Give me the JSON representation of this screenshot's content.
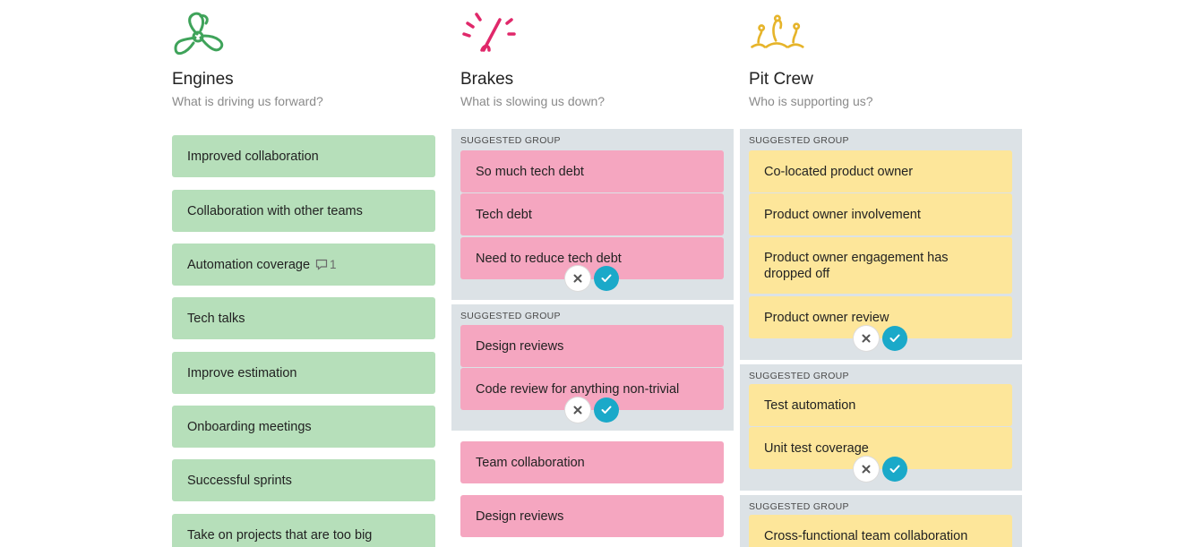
{
  "columns": {
    "engines": {
      "title": "Engines",
      "subtitle": "What is driving us forward?",
      "icon": "propeller-icon",
      "color": "#3fa35a",
      "cards": [
        {
          "text": "Improved collaboration"
        },
        {
          "text": "Collaboration with other teams"
        },
        {
          "text": "Automation coverage",
          "comments": "1"
        },
        {
          "text": "Tech talks"
        },
        {
          "text": "Improve estimation"
        },
        {
          "text": "Onboarding meetings"
        },
        {
          "text": "Successful sprints"
        },
        {
          "text": "Take on projects that are too big"
        }
      ]
    },
    "brakes": {
      "title": "Brakes",
      "subtitle": "What is slowing us down?",
      "icon": "speedometer-icon",
      "color": "#e0286a",
      "groups": [
        {
          "label": "Suggested group",
          "cards": [
            "So much tech debt",
            "Tech debt",
            "Need to reduce tech debt"
          ]
        },
        {
          "label": "Suggested group",
          "cards": [
            "Design reviews",
            "Code review for anything non-trivial"
          ]
        }
      ],
      "cards": [
        "Team collaboration",
        "Design reviews"
      ]
    },
    "pitcrew": {
      "title": "Pit Crew",
      "subtitle": "Who is supporting us?",
      "icon": "pit-crew-icon",
      "color": "#e6b42a",
      "groups": [
        {
          "label": "Suggested group",
          "cards": [
            "Co-located product owner",
            "Product owner involvement",
            "Product owner engagement has dropped off",
            "Product owner review"
          ]
        },
        {
          "label": "Suggested group",
          "cards": [
            "Test automation",
            "Unit test coverage"
          ]
        },
        {
          "label": "Suggested group",
          "cards": [
            "Cross-functional team collaboration"
          ]
        }
      ]
    }
  },
  "actions": {
    "reject": "close-icon",
    "accept": "check-icon"
  }
}
